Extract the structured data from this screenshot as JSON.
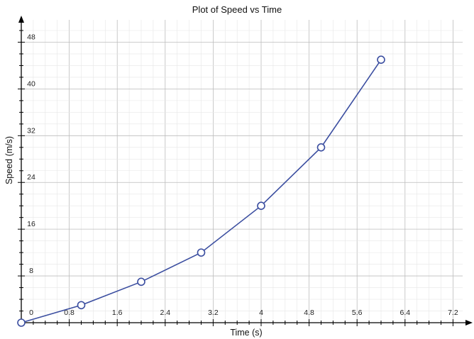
{
  "chart_data": {
    "type": "line",
    "title": "Plot of Speed vs Time",
    "xlabel": "Time (s)",
    "ylabel": "Speed (m/s)",
    "xlim": [
      0,
      7.6
    ],
    "ylim": [
      0,
      52
    ],
    "x_ticks": [
      0.8,
      1.6,
      2.4,
      3.2,
      4,
      4.8,
      5.6,
      6.4,
      7.2
    ],
    "x_tick_labels": [
      "0.8",
      "1.6",
      "2.4",
      "3.2",
      "4",
      "4.8",
      "5.6",
      "6.4",
      "7.2"
    ],
    "y_ticks": [
      8,
      16,
      24,
      32,
      40,
      48
    ],
    "y_tick_labels": [
      "8",
      "16",
      "24",
      "32",
      "40",
      "48"
    ],
    "origin_label": "0",
    "x_minor_step": 0.2,
    "y_minor_step": 2,
    "grid": true,
    "series": [
      {
        "x": [
          0,
          1,
          2,
          3,
          4,
          5,
          6
        ],
        "y": [
          0,
          3,
          7,
          12,
          20,
          30,
          45
        ],
        "color": "#3b4ea0",
        "marker": "open-circle"
      }
    ]
  }
}
